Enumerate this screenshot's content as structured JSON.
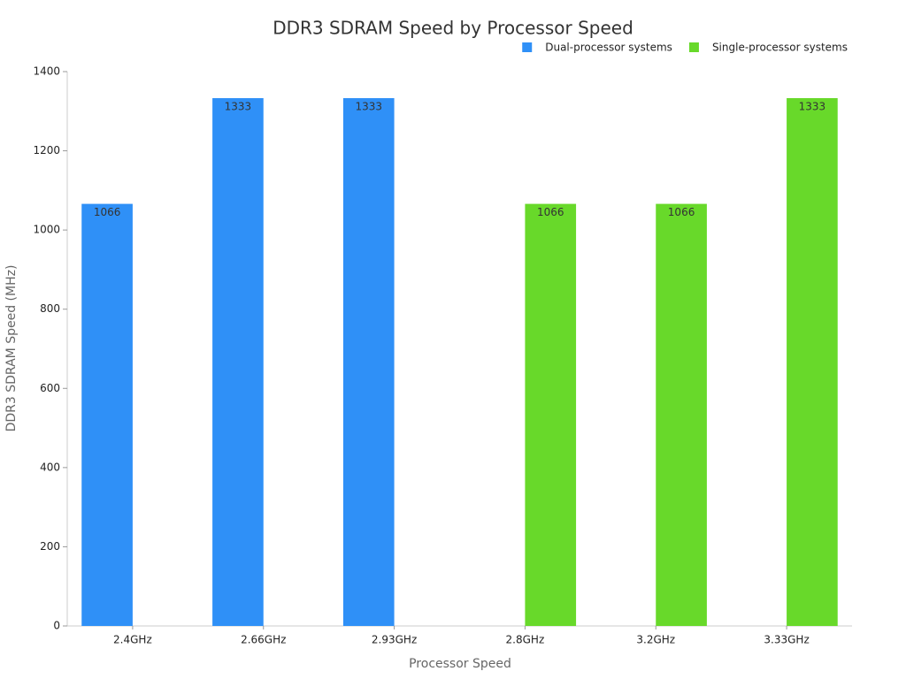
{
  "chart_data": {
    "type": "bar",
    "title": "DDR3 SDRAM Speed by Processor Speed",
    "x_label": "Processor Speed",
    "y_label": "DDR3 SDRAM Speed (MHz)",
    "categories": [
      "2.4GHz",
      "2.66GHz",
      "2.93GHz",
      "2.8GHz",
      "3.2GHz",
      "3.33GHz"
    ],
    "series": [
      {
        "name": "Dual-processor systems",
        "color": "#2f90f7",
        "values": [
          1066,
          1333,
          1333,
          null,
          null,
          null
        ]
      },
      {
        "name": "Single-processor systems",
        "color": "#68d92a",
        "values": [
          null,
          null,
          null,
          1066,
          1066,
          1333
        ]
      }
    ],
    "ylim": [
      0,
      1400
    ],
    "yticks": [
      0,
      200,
      400,
      600,
      800,
      1000,
      1200,
      1400
    ],
    "grid": false,
    "legend_position": "top-right"
  }
}
